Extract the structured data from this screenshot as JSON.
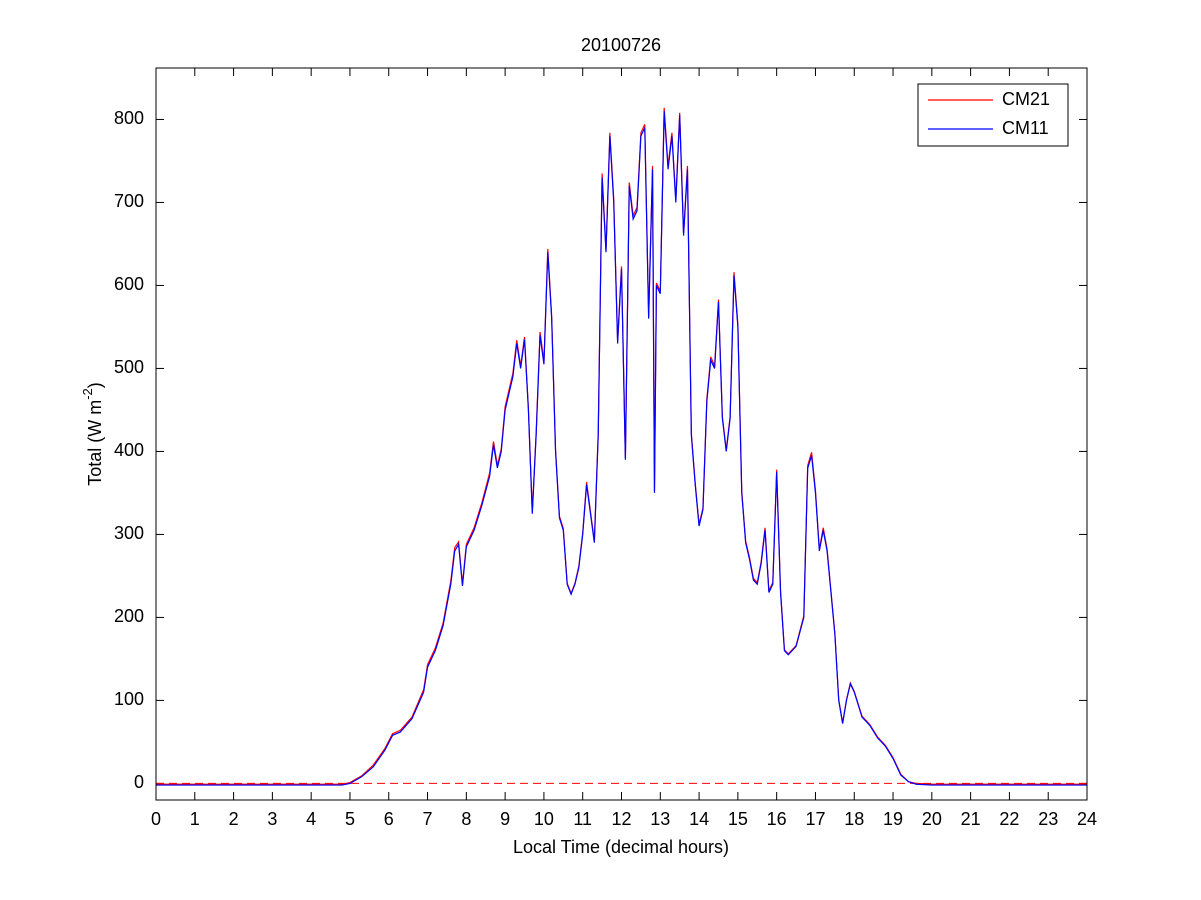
{
  "chart_data": {
    "type": "line",
    "title": "20100726",
    "xlabel": "Local Time (decimal hours)",
    "ylabel": {
      "main": "Total (W m",
      "sup": "-2",
      "end": ")"
    },
    "xlim": [
      0,
      24
    ],
    "ylim": [
      -20,
      862
    ],
    "xticks": [
      0,
      1,
      2,
      3,
      4,
      5,
      6,
      7,
      8,
      9,
      10,
      11,
      12,
      13,
      14,
      15,
      16,
      17,
      18,
      19,
      20,
      21,
      22,
      23,
      24
    ],
    "yticks": [
      0,
      100,
      200,
      300,
      400,
      500,
      600,
      700,
      800
    ],
    "legend": "upper right",
    "grid": false,
    "reference_line": {
      "value": 0,
      "color": "#ff0000",
      "style": "dashed"
    },
    "x": [
      0,
      4.8,
      5.0,
      5.3,
      5.6,
      5.9,
      6.1,
      6.3,
      6.6,
      6.9,
      7.0,
      7.2,
      7.4,
      7.6,
      7.7,
      7.8,
      7.9,
      8.0,
      8.2,
      8.4,
      8.6,
      8.7,
      8.8,
      8.9,
      9.0,
      9.2,
      9.3,
      9.4,
      9.5,
      9.6,
      9.7,
      9.8,
      9.9,
      10.0,
      10.1,
      10.2,
      10.3,
      10.4,
      10.5,
      10.6,
      10.7,
      10.8,
      10.9,
      11.0,
      11.1,
      11.3,
      11.4,
      11.5,
      11.6,
      11.7,
      11.8,
      11.9,
      12.0,
      12.1,
      12.2,
      12.3,
      12.4,
      12.5,
      12.6,
      12.7,
      12.8,
      12.85,
      12.9,
      13.0,
      13.1,
      13.2,
      13.3,
      13.4,
      13.5,
      13.6,
      13.7,
      13.8,
      13.9,
      14.0,
      14.1,
      14.2,
      14.3,
      14.4,
      14.5,
      14.6,
      14.7,
      14.8,
      14.9,
      15.0,
      15.1,
      15.2,
      15.3,
      15.4,
      15.5,
      15.6,
      15.7,
      15.8,
      15.9,
      16.0,
      16.1,
      16.2,
      16.3,
      16.5,
      16.7,
      16.8,
      16.9,
      17.0,
      17.1,
      17.2,
      17.3,
      17.5,
      17.6,
      17.7,
      17.8,
      17.9,
      18.0,
      18.2,
      18.4,
      18.6,
      18.8,
      19.0,
      19.2,
      19.4,
      19.6,
      20,
      24
    ],
    "series": [
      {
        "name": "CM21",
        "color": "#ff0000",
        "values": [
          -1,
          -1,
          1,
          9,
          22,
          42,
          60,
          64,
          80,
          113,
          143,
          163,
          193,
          244,
          284,
          291,
          240,
          288,
          308,
          338,
          374,
          412,
          383,
          403,
          454,
          494,
          534,
          503,
          538,
          452,
          327,
          423,
          544,
          508,
          644,
          563,
          402,
          322,
          307,
          241,
          229,
          241,
          262,
          302,
          363,
          292,
          423,
          735,
          643,
          784,
          704,
          533,
          623,
          392,
          724,
          684,
          694,
          784,
          794,
          563,
          744,
          352,
          603,
          593,
          814,
          744,
          784,
          703,
          808,
          663,
          744,
          422,
          362,
          312,
          332,
          463,
          514,
          503,
          583,
          442,
          402,
          442,
          616,
          553,
          352,
          292,
          272,
          247,
          242,
          267,
          308,
          232,
          242,
          378,
          232,
          161,
          156,
          166,
          202,
          383,
          399,
          353,
          282,
          308,
          282,
          181,
          101,
          73,
          101,
          121,
          111,
          81,
          71,
          56,
          46,
          31,
          11,
          2,
          0,
          -1,
          -1
        ]
      },
      {
        "name": "CM11",
        "color": "#0000ff",
        "values": [
          -2,
          -2,
          0,
          8,
          20,
          40,
          58,
          62,
          78,
          110,
          140,
          160,
          190,
          240,
          280,
          288,
          238,
          285,
          305,
          335,
          370,
          408,
          380,
          400,
          450,
          490,
          530,
          500,
          535,
          450,
          325,
          420,
          540,
          505,
          640,
          560,
          400,
          320,
          305,
          240,
          228,
          240,
          260,
          300,
          360,
          290,
          420,
          730,
          640,
          780,
          700,
          530,
          620,
          390,
          720,
          680,
          690,
          780,
          790,
          560,
          740,
          350,
          600,
          590,
          810,
          740,
          780,
          700,
          805,
          660,
          740,
          420,
          360,
          310,
          330,
          460,
          510,
          500,
          580,
          440,
          400,
          440,
          612,
          550,
          350,
          290,
          270,
          245,
          240,
          265,
          305,
          230,
          240,
          375,
          230,
          160,
          155,
          165,
          200,
          380,
          395,
          350,
          280,
          305,
          280,
          180,
          100,
          72,
          100,
          120,
          110,
          80,
          70,
          55,
          45,
          30,
          10,
          2,
          -1,
          -2,
          -2
        ]
      }
    ]
  }
}
